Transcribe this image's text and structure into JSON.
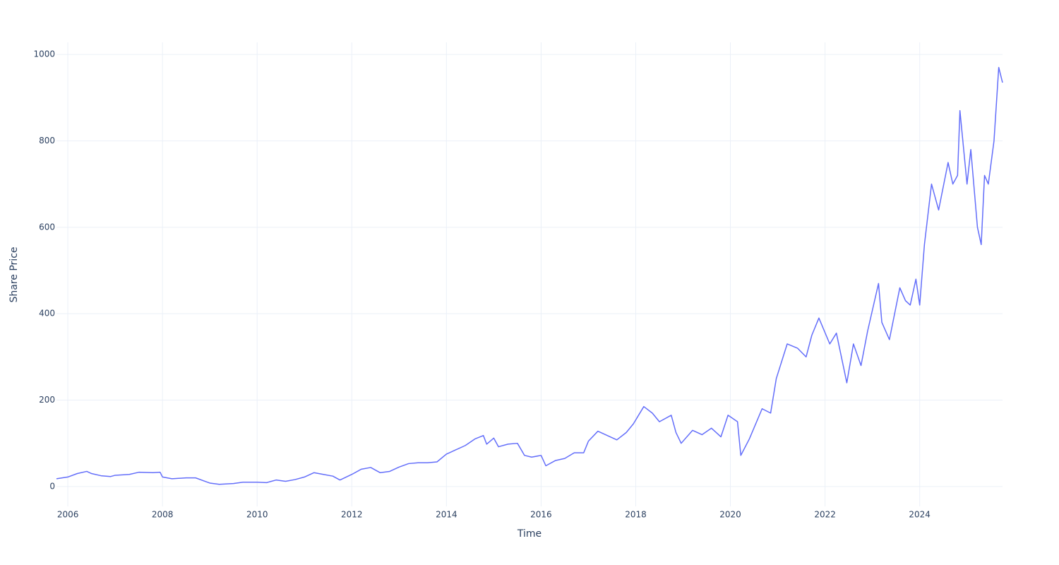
{
  "chart_data": {
    "type": "line",
    "xlabel": "Time",
    "ylabel": "Share Price",
    "color": "#636efa",
    "grid": true,
    "xlim": [
      2005.76,
      2025.75
    ],
    "ylim": [
      -46,
      1028
    ],
    "xticks": [
      2006,
      2008,
      2010,
      2012,
      2014,
      2016,
      2018,
      2020,
      2022,
      2024
    ],
    "yticks": [
      0,
      200,
      400,
      600,
      800,
      1000
    ],
    "x": [
      2005.76,
      2006.0,
      2006.2,
      2006.4,
      2006.5,
      2006.7,
      2006.9,
      2007.0,
      2007.3,
      2007.5,
      2007.8,
      2007.95,
      2008.0,
      2008.2,
      2008.5,
      2008.7,
      2008.9,
      2009.0,
      2009.2,
      2009.5,
      2009.7,
      2010.0,
      2010.2,
      2010.4,
      2010.6,
      2010.8,
      2011.0,
      2011.2,
      2011.4,
      2011.6,
      2011.75,
      2012.0,
      2012.2,
      2012.4,
      2012.6,
      2012.8,
      2013.0,
      2013.2,
      2013.4,
      2013.6,
      2013.8,
      2014.0,
      2014.2,
      2014.4,
      2014.6,
      2014.78,
      2014.85,
      2015.0,
      2015.1,
      2015.3,
      2015.5,
      2015.65,
      2015.8,
      2016.0,
      2016.1,
      2016.3,
      2016.5,
      2016.7,
      2016.9,
      2017.0,
      2017.2,
      2017.4,
      2017.6,
      2017.8,
      2017.95,
      2018.17,
      2018.35,
      2018.5,
      2018.75,
      2018.85,
      2018.96,
      2019.2,
      2019.4,
      2019.6,
      2019.8,
      2019.95,
      2020.15,
      2020.22,
      2020.4,
      2020.67,
      2020.85,
      2020.97,
      2021.2,
      2021.42,
      2021.6,
      2021.72,
      2021.87,
      2022.1,
      2022.24,
      2022.46,
      2022.6,
      2022.76,
      2022.9,
      2023.13,
      2023.2,
      2023.36,
      2023.58,
      2023.7,
      2023.8,
      2023.92,
      2024.0,
      2024.1,
      2024.25,
      2024.4,
      2024.6,
      2024.7,
      2024.8,
      2024.85,
      2025.0,
      2025.08,
      2025.22,
      2025.3,
      2025.37,
      2025.45,
      2025.57,
      2025.67,
      2025.75
    ],
    "values": [
      18,
      22,
      30,
      35,
      30,
      25,
      23,
      26,
      28,
      33,
      32,
      33,
      22,
      18,
      20,
      20,
      12,
      8,
      5,
      7,
      10,
      10,
      9,
      15,
      12,
      16,
      22,
      32,
      28,
      24,
      15,
      28,
      40,
      44,
      32,
      35,
      45,
      53,
      55,
      55,
      57,
      75,
      85,
      95,
      110,
      118,
      98,
      112,
      92,
      98,
      100,
      72,
      68,
      72,
      48,
      60,
      65,
      78,
      78,
      105,
      128,
      118,
      108,
      125,
      145,
      185,
      170,
      150,
      165,
      125,
      100,
      130,
      120,
      135,
      115,
      165,
      150,
      72,
      110,
      180,
      170,
      250,
      330,
      320,
      300,
      350,
      390,
      330,
      355,
      240,
      330,
      280,
      360,
      470,
      380,
      340,
      460,
      430,
      420,
      480,
      420,
      560,
      700,
      640,
      750,
      700,
      720,
      870,
      700,
      780,
      600,
      560,
      720,
      700,
      800,
      970,
      935
    ]
  }
}
